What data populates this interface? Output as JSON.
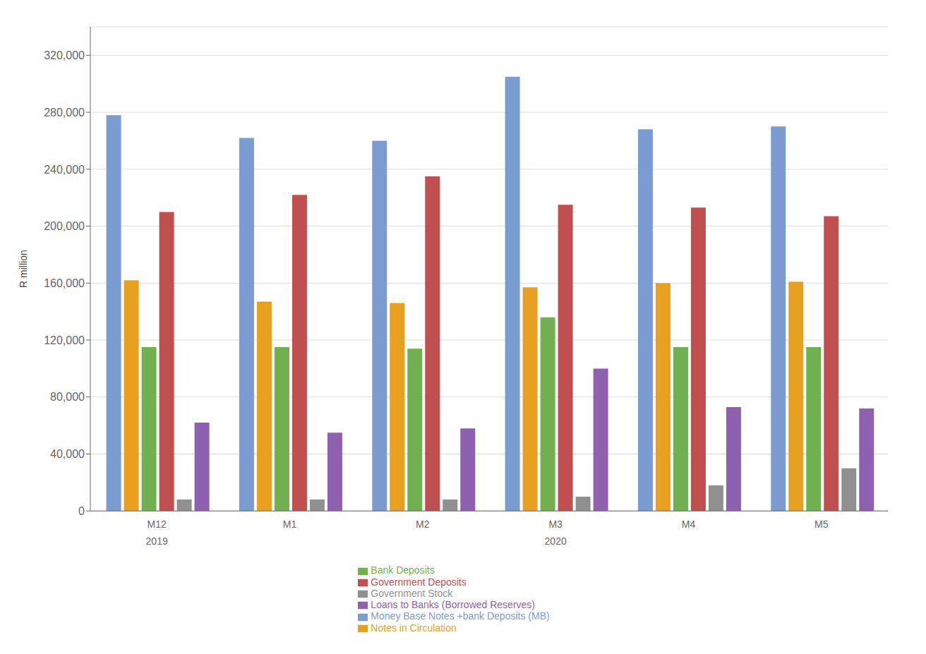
{
  "chart_data": {
    "type": "bar",
    "categories": [
      "M12",
      "M1",
      "M2",
      "M3",
      "M4",
      "M5"
    ],
    "annotations": [
      {
        "text": "2019",
        "x": "M12"
      },
      {
        "text": "2020",
        "x": "M3"
      }
    ],
    "series": [
      {
        "name": "Money Base Notes +bank Deposits (MB)",
        "values": [
          278000,
          262000,
          260000,
          305000,
          268000,
          270000
        ],
        "color": "#7B9CD0"
      },
      {
        "name": "Notes in Circulation",
        "values": [
          162000,
          147000,
          146000,
          157000,
          160000,
          161000
        ],
        "color": "#E8A020"
      },
      {
        "name": "Bank Deposits",
        "values": [
          115000,
          115000,
          114000,
          136000,
          115000,
          115000
        ],
        "color": "#70B050"
      },
      {
        "name": "Government Deposits",
        "values": [
          210000,
          222000,
          235000,
          215000,
          213000,
          207000
        ],
        "color": "#C05050"
      },
      {
        "name": "Government Stock",
        "values": [
          8000,
          8000,
          8000,
          10000,
          18000,
          30000
        ],
        "color": "#909090"
      },
      {
        "name": "Loans to Banks (Borrowed Reserves)",
        "values": [
          62000,
          55000,
          58000,
          100000,
          73000,
          72000
        ],
        "color": "#9060B0"
      }
    ],
    "ylabel": "R million",
    "ylim": [
      0,
      340000
    ],
    "yticks": [
      0,
      {
        "value": 40000,
        "label": "40,000"
      },
      {
        "value": 80000,
        "label": "80,000"
      },
      {
        "value": 120000,
        "label": "120,000"
      },
      {
        "value": 160000,
        "label": "160,000"
      },
      {
        "value": 200000,
        "label": "200,000"
      },
      {
        "value": 240000,
        "label": "240,000"
      },
      {
        "value": 280000,
        "label": "280,000"
      },
      {
        "value": 320000,
        "label": "320,000"
      }
    ],
    "grid": true,
    "legend": "bottom"
  }
}
